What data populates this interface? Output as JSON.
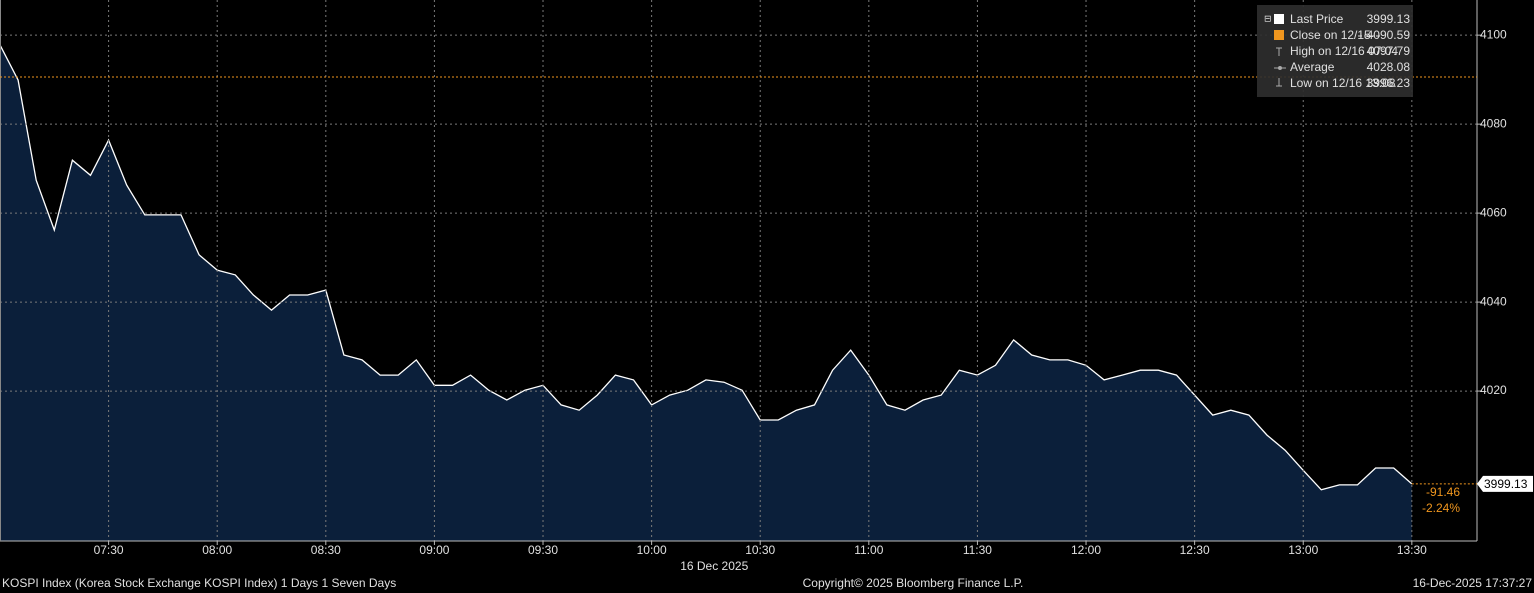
{
  "chart_data": {
    "type": "area",
    "x": [
      "07:00",
      "07:05",
      "07:10",
      "07:15",
      "07:20",
      "07:25",
      "07:30",
      "07:35",
      "07:40",
      "07:45",
      "07:50",
      "07:55",
      "08:00",
      "08:05",
      "08:10",
      "08:15",
      "08:20",
      "08:25",
      "08:30",
      "08:35",
      "08:40",
      "08:45",
      "08:50",
      "08:55",
      "09:00",
      "09:05",
      "09:10",
      "09:15",
      "09:20",
      "09:25",
      "09:30",
      "09:35",
      "09:40",
      "09:45",
      "09:50",
      "09:55",
      "10:00",
      "10:05",
      "10:10",
      "10:15",
      "10:20",
      "10:25",
      "10:30",
      "10:35",
      "10:40",
      "10:45",
      "10:50",
      "10:55",
      "11:00",
      "11:05",
      "11:10",
      "11:15",
      "11:20",
      "11:25",
      "11:30",
      "11:35",
      "11:40",
      "11:45",
      "11:50",
      "11:55",
      "12:00",
      "12:05",
      "12:10",
      "12:15",
      "12:20",
      "12:25",
      "12:30",
      "12:35",
      "12:40",
      "12:45",
      "12:50",
      "12:55",
      "13:00",
      "13:05",
      "13:10",
      "13:15",
      "13:20",
      "13:25",
      "13:30"
    ],
    "values": [
      4097.8,
      4089.9,
      4067.4,
      4056.2,
      4071.9,
      4068.5,
      4076.4,
      4066.3,
      4059.6,
      4059.6,
      4059.6,
      4050.6,
      4047.2,
      4046.1,
      4041.6,
      4038.2,
      4041.6,
      4041.6,
      4042.7,
      4028.1,
      4027.0,
      4023.6,
      4023.6,
      4027.0,
      4021.3,
      4021.3,
      4023.6,
      4020.2,
      4018.0,
      4020.2,
      4021.3,
      4016.9,
      4015.7,
      4019.1,
      4023.6,
      4022.5,
      4016.9,
      4019.1,
      4020.2,
      4022.5,
      4022.0,
      4020.2,
      4013.5,
      4013.5,
      4015.7,
      4016.9,
      4024.7,
      4029.2,
      4023.6,
      4016.9,
      4015.7,
      4018.0,
      4019.1,
      4024.7,
      4023.6,
      4025.8,
      4031.5,
      4028.1,
      4027.0,
      4027.0,
      4025.8,
      4022.5,
      4023.6,
      4024.7,
      4024.7,
      4023.6,
      4019.1,
      4014.6,
      4015.7,
      4014.6,
      4010.1,
      4006.7,
      4002.2,
      3997.8,
      3998.9,
      3998.9,
      4002.7,
      4002.7,
      3999.13
    ],
    "line_color": "#ffffff",
    "fill_color": "#0b1f3a",
    "close_color": "#f0961e",
    "xlim": [
      "07:00",
      "13:48"
    ],
    "xticks": [
      "07:30",
      "08:00",
      "08:30",
      "09:00",
      "09:30",
      "10:00",
      "10:30",
      "11:00",
      "11:30",
      "12:00",
      "12:30",
      "13:00",
      "13:30"
    ],
    "ylim": [
      3986.3,
      4107.9
    ],
    "yticks": [
      4020,
      4040,
      4060,
      4080,
      4100
    ],
    "grid": true,
    "date_label": "16 Dec 2025",
    "legend": [
      {
        "label": "Last Price",
        "value": 3999.13
      },
      {
        "label": "Close on 12/15",
        "value": 4090.59
      },
      {
        "label": "High on 12/16 07:04",
        "value": 4097.79
      },
      {
        "label": "Average",
        "value": 4028.08
      },
      {
        "label": "Low on 12/16 13:08",
        "value": 3996.23
      }
    ],
    "change": -91.46,
    "change_percent": {
      "value": -2.24,
      "label": "-2.24%"
    },
    "footer": {
      "left": "KOSPI Index (Korea Stock Exchange KOSPI Index) 1 Days 1 Seven Days",
      "center": "Copyright© 2025 Bloomberg Finance L.P.",
      "right": "16-Dec-2025 17:37:27"
    }
  }
}
